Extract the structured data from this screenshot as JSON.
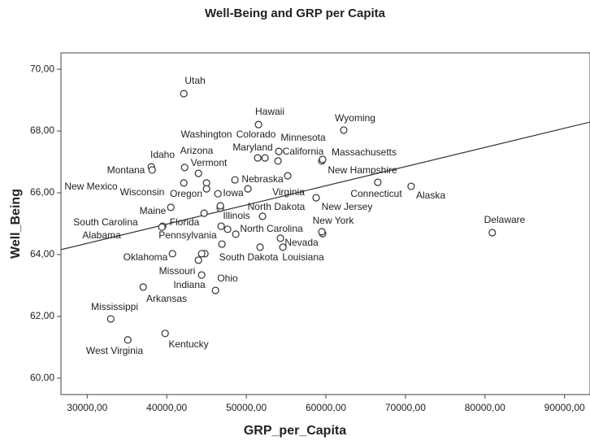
{
  "chart_data": {
    "type": "scatter",
    "title": "Well-Being and GRP per Capita",
    "x_label": "GRP_per_Capita",
    "y_label": "Well_Being",
    "xlim": [
      26700,
      93200
    ],
    "ylim": [
      59.47,
      70.53
    ],
    "xticks": [
      {
        "value": 30000,
        "label": "30000,00"
      },
      {
        "value": 40000,
        "label": "40000,00"
      },
      {
        "value": 50000,
        "label": "50000,00"
      },
      {
        "value": 60000,
        "label": "60000,00"
      },
      {
        "value": 70000,
        "label": "70000,00"
      },
      {
        "value": 80000,
        "label": "80000,00"
      },
      {
        "value": 90000,
        "label": "90000,00"
      }
    ],
    "yticks": [
      {
        "value": 60,
        "label": "60,00"
      },
      {
        "value": 62,
        "label": "62,00"
      },
      {
        "value": 64,
        "label": "64,00"
      },
      {
        "value": 66,
        "label": "66,00"
      },
      {
        "value": 68,
        "label": "68,00"
      },
      {
        "value": 70,
        "label": "70,00"
      }
    ],
    "grid": false,
    "color": "#333333",
    "point_labels": [
      "Utah",
      "Hawaii",
      "Wyoming",
      "Washington",
      "Colorado",
      "Maryland",
      "Minnesota",
      "California",
      "New Hampshire",
      "Massachusetts",
      "Connecticut",
      "Alaska",
      "Delaware",
      "Virginia",
      "New Jersey",
      "New York",
      "Idaho",
      "Montana",
      "Arizona",
      "Vermont",
      "Nebraska",
      "New Mexico",
      "Wisconsin",
      "Oregon",
      "Iowa",
      "Maine",
      "Florida",
      "Illinois",
      "North Dakota",
      "South Carolina",
      "Alabama",
      "Pennsylvania",
      "North Carolina",
      "Nevada",
      "Louisiana",
      "South Dakota",
      "Oklahoma",
      "Missouri",
      "Indiana",
      "Ohio",
      "Arkansas",
      "Mississippi",
      "West Virginia",
      "Kentucky",
      null,
      null,
      null,
      null,
      null,
      null
    ],
    "x": [
      42143,
      51531,
      62245,
      51429,
      52347,
      53980,
      54082,
      55204,
      59490,
      59592,
      66531,
      70714,
      80918,
      58776,
      59592,
      59490,
      38061,
      38163,
      42245,
      43980,
      48571,
      42143,
      45000,
      45000,
      46429,
      40510,
      44694,
      46735,
      52041,
      39490,
      39388,
      46837,
      47653,
      54286,
      54592,
      51735,
      40714,
      43980,
      44388,
      46122,
      37041,
      32959,
      35102,
      39796,
      44796,
      44388,
      48673,
      46939,
      50204,
      46735
    ],
    "y": [
      69.21,
      68.21,
      68.03,
      67.13,
      67.13,
      67.03,
      67.34,
      66.55,
      67.03,
      67.08,
      66.34,
      66.21,
      64.71,
      65.84,
      64.68,
      64.74,
      66.84,
      66.74,
      66.82,
      66.63,
      66.42,
      66.32,
      66.32,
      66.13,
      65.97,
      65.53,
      65.34,
      65.5,
      65.24,
      64.92,
      64.89,
      64.92,
      64.82,
      64.53,
      64.24,
      64.24,
      64.03,
      63.82,
      63.34,
      62.84,
      62.95,
      61.92,
      61.24,
      61.45,
      64.03,
      64.03,
      64.66,
      64.34,
      66.13,
      65.58
    ],
    "fit_line": {
      "x": [
        26700,
        93200
      ],
      "y": [
        64.16,
        68.29
      ]
    }
  }
}
